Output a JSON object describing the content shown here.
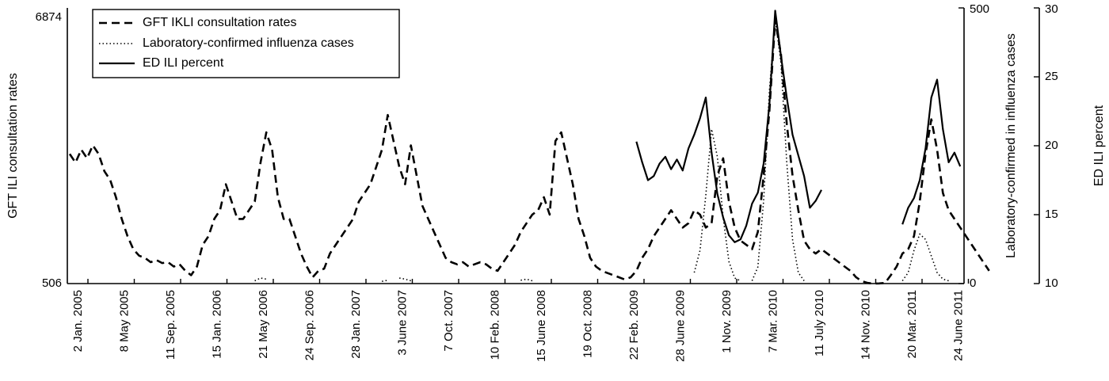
{
  "chart_data": {
    "type": "line",
    "title": "",
    "x_ticks": [
      "2 Jan. 2005",
      "8 May 2005",
      "11 Sep. 2005",
      "15 Jan. 2006",
      "21 May 2006",
      "24 Sep. 2006",
      "28 Jan. 2007",
      "3 June 2007",
      "7 Oct. 2007",
      "10 Feb. 2008",
      "15 June 2008",
      "19 Oct. 2008",
      "22 Feb. 2009",
      "28 June 2009",
      "1 Nov. 2009",
      "7 Mar. 2010",
      "11 July 2010",
      "14 Nov. 2010",
      "20 Mar. 2011",
      "24 June 2011"
    ],
    "axes": {
      "left": {
        "label": "GFT ILI consultation rates",
        "ticks": [
          "506",
          "6874"
        ],
        "range": [
          506,
          6874
        ]
      },
      "right1": {
        "label": "Laboratory-confirmed in influenza cases",
        "ticks": [
          "0",
          "500"
        ],
        "range": [
          0,
          500
        ]
      },
      "right2": {
        "label": "ED ILI percent",
        "ticks": [
          "10",
          "15",
          "20",
          "25",
          "30"
        ],
        "range": [
          10,
          30
        ]
      }
    },
    "legend": {
      "placement": "top-left",
      "entries": [
        "GFT IKLI consultation rates",
        "Laboratory-confirmed influenza cases",
        "ED ILI percent"
      ]
    },
    "series": [
      {
        "name": "GFT IKLI consultation rates",
        "axis": "left",
        "style": "dashed",
        "points": [
          [
            0,
            3500
          ],
          [
            1,
            3300
          ],
          [
            2,
            3600
          ],
          [
            3,
            3400
          ],
          [
            4,
            3700
          ],
          [
            5,
            3500
          ],
          [
            6,
            3100
          ],
          [
            7,
            2900
          ],
          [
            8,
            2500
          ],
          [
            9,
            2000
          ],
          [
            10,
            1600
          ],
          [
            11,
            1300
          ],
          [
            12,
            1150
          ],
          [
            13,
            1100
          ],
          [
            14,
            1000
          ],
          [
            15,
            1050
          ],
          [
            16,
            980
          ],
          [
            17,
            1000
          ],
          [
            18,
            900
          ],
          [
            19,
            950
          ],
          [
            20,
            800
          ],
          [
            21,
            700
          ],
          [
            22,
            900
          ],
          [
            23,
            1400
          ],
          [
            24,
            1600
          ],
          [
            25,
            2000
          ],
          [
            26,
            2200
          ],
          [
            27,
            2800
          ],
          [
            28,
            2400
          ],
          [
            29,
            2000
          ],
          [
            30,
            2000
          ],
          [
            31,
            2200
          ],
          [
            32,
            2400
          ],
          [
            33,
            3300
          ],
          [
            34,
            4000
          ],
          [
            35,
            3600
          ],
          [
            36,
            2500
          ],
          [
            37,
            2000
          ],
          [
            38,
            2000
          ],
          [
            39,
            1600
          ],
          [
            40,
            1200
          ],
          [
            41,
            900
          ],
          [
            42,
            650
          ],
          [
            43,
            800
          ],
          [
            44,
            850
          ],
          [
            45,
            1200
          ],
          [
            46,
            1400
          ],
          [
            47,
            1600
          ],
          [
            48,
            1800
          ],
          [
            49,
            2000
          ],
          [
            50,
            2400
          ],
          [
            51,
            2600
          ],
          [
            52,
            2800
          ],
          [
            53,
            3200
          ],
          [
            54,
            3600
          ],
          [
            55,
            4400
          ],
          [
            56,
            3800
          ],
          [
            57,
            3200
          ],
          [
            58,
            2800
          ],
          [
            59,
            3700
          ],
          [
            60,
            3000
          ],
          [
            61,
            2300
          ],
          [
            62,
            2000
          ],
          [
            63,
            1700
          ],
          [
            64,
            1400
          ],
          [
            65,
            1100
          ],
          [
            66,
            1000
          ],
          [
            67,
            950
          ],
          [
            68,
            1000
          ],
          [
            69,
            900
          ],
          [
            70,
            950
          ],
          [
            71,
            1000
          ],
          [
            72,
            950
          ],
          [
            73,
            850
          ],
          [
            74,
            800
          ],
          [
            75,
            1000
          ],
          [
            76,
            1200
          ],
          [
            77,
            1400
          ],
          [
            78,
            1700
          ],
          [
            79,
            1900
          ],
          [
            80,
            2100
          ],
          [
            81,
            2200
          ],
          [
            82,
            2500
          ],
          [
            83,
            2100
          ],
          [
            84,
            3800
          ],
          [
            85,
            4000
          ],
          [
            86,
            3400
          ],
          [
            87,
            2800
          ],
          [
            88,
            2000
          ],
          [
            89,
            1600
          ],
          [
            90,
            1100
          ],
          [
            91,
            900
          ],
          [
            92,
            800
          ],
          [
            93,
            750
          ],
          [
            94,
            700
          ],
          [
            95,
            650
          ],
          [
            96,
            600
          ],
          [
            97,
            650
          ],
          [
            98,
            800
          ],
          [
            99,
            1100
          ],
          [
            100,
            1300
          ],
          [
            101,
            1600
          ],
          [
            102,
            1800
          ],
          [
            103,
            2000
          ],
          [
            104,
            2200
          ],
          [
            105,
            2000
          ],
          [
            106,
            1800
          ],
          [
            107,
            1900
          ],
          [
            108,
            2200
          ],
          [
            109,
            2100
          ],
          [
            110,
            1800
          ],
          [
            111,
            1900
          ],
          [
            112,
            3000
          ],
          [
            113,
            3400
          ],
          [
            114,
            2400
          ],
          [
            115,
            1800
          ],
          [
            116,
            1500
          ],
          [
            117,
            1400
          ],
          [
            118,
            1300
          ],
          [
            119,
            1700
          ],
          [
            120,
            3000
          ],
          [
            121,
            4500
          ],
          [
            122,
            6600
          ],
          [
            123,
            5800
          ],
          [
            124,
            4200
          ],
          [
            125,
            3000
          ],
          [
            126,
            2200
          ],
          [
            127,
            1500
          ],
          [
            128,
            1300
          ],
          [
            129,
            1200
          ],
          [
            130,
            1300
          ],
          [
            131,
            1200
          ],
          [
            132,
            1100
          ],
          [
            133,
            1000
          ],
          [
            134,
            900
          ],
          [
            135,
            800
          ],
          [
            136,
            650
          ],
          [
            137,
            560
          ],
          [
            138,
            520
          ],
          [
            139,
            506
          ],
          [
            140,
            510
          ],
          [
            141,
            520
          ],
          [
            142,
            700
          ],
          [
            143,
            900
          ],
          [
            144,
            1200
          ],
          [
            145,
            1300
          ],
          [
            146,
            1600
          ],
          [
            147,
            2400
          ],
          [
            148,
            3500
          ],
          [
            149,
            4300
          ],
          [
            150,
            3600
          ],
          [
            151,
            2600
          ],
          [
            152,
            2200
          ],
          [
            153,
            2000
          ],
          [
            154,
            1800
          ],
          [
            155,
            1600
          ],
          [
            156,
            1400
          ],
          [
            157,
            1200
          ],
          [
            158,
            1000
          ],
          [
            159,
            800
          ]
        ]
      },
      {
        "name": "Laboratory-confirmed influenza cases",
        "axis": "right1",
        "style": "dotted",
        "points": [
          [
            32,
            5
          ],
          [
            33,
            10
          ],
          [
            34,
            8
          ],
          [
            36,
            4
          ],
          [
            54,
            4
          ],
          [
            55,
            6
          ],
          [
            57,
            10
          ],
          [
            58,
            8
          ],
          [
            59,
            5
          ],
          [
            76,
            4
          ],
          [
            78,
            6
          ],
          [
            79,
            8
          ],
          [
            80,
            5
          ],
          [
            102,
            3
          ],
          [
            104,
            5
          ],
          [
            106,
            10
          ],
          [
            108,
            20
          ],
          [
            109,
            60
          ],
          [
            110,
            160
          ],
          [
            111,
            280
          ],
          [
            112,
            230
          ],
          [
            113,
            120
          ],
          [
            114,
            40
          ],
          [
            115,
            10
          ],
          [
            116,
            5
          ],
          [
            118,
            5
          ],
          [
            119,
            30
          ],
          [
            120,
            150
          ],
          [
            121,
            350
          ],
          [
            122,
            480
          ],
          [
            123,
            400
          ],
          [
            124,
            220
          ],
          [
            125,
            80
          ],
          [
            126,
            20
          ],
          [
            127,
            5
          ],
          [
            144,
            5
          ],
          [
            145,
            20
          ],
          [
            146,
            60
          ],
          [
            147,
            90
          ],
          [
            148,
            80
          ],
          [
            149,
            50
          ],
          [
            150,
            20
          ],
          [
            151,
            8
          ],
          [
            152,
            5
          ]
        ]
      },
      {
        "name": "ED ILI percent",
        "axis": "right2",
        "style": "solid",
        "points": [
          [
            98,
            20.3
          ],
          [
            99,
            18.8
          ],
          [
            100,
            17.5
          ],
          [
            101,
            17.8
          ],
          [
            102,
            18.7
          ],
          [
            103,
            19.2
          ],
          [
            104,
            18.3
          ],
          [
            105,
            19.0
          ],
          [
            106,
            18.2
          ],
          [
            107,
            19.8
          ],
          [
            108,
            20.8
          ],
          [
            109,
            22.0
          ],
          [
            110,
            23.5
          ],
          [
            111,
            19.5
          ],
          [
            112,
            16.5
          ],
          [
            113,
            14.8
          ],
          [
            114,
            13.5
          ],
          [
            115,
            13.0
          ],
          [
            116,
            13.2
          ],
          [
            117,
            14.2
          ],
          [
            118,
            15.8
          ],
          [
            119,
            16.6
          ],
          [
            120,
            18.7
          ],
          [
            121,
            23.0
          ],
          [
            122,
            29.8
          ],
          [
            123,
            26.5
          ],
          [
            124,
            23.5
          ],
          [
            125,
            20.8
          ],
          [
            126,
            19.3
          ],
          [
            127,
            17.8
          ],
          [
            128,
            15.5
          ],
          [
            129,
            16.0
          ],
          [
            130,
            16.8
          ],
          [
            144,
            14.3
          ],
          [
            145,
            15.5
          ],
          [
            146,
            16.2
          ],
          [
            147,
            17.5
          ],
          [
            148,
            19.8
          ],
          [
            149,
            23.5
          ],
          [
            150,
            24.8
          ],
          [
            151,
            21.2
          ],
          [
            152,
            18.8
          ],
          [
            153,
            19.5
          ],
          [
            154,
            18.5
          ]
        ]
      }
    ]
  }
}
